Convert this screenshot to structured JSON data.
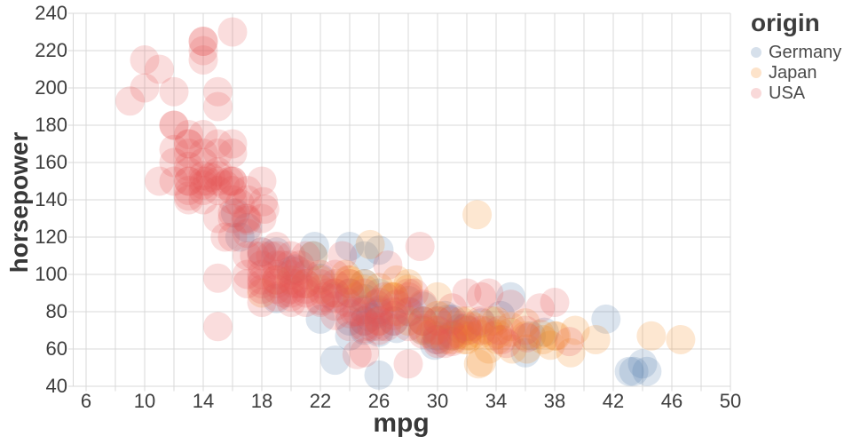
{
  "chart_data": {
    "type": "scatter",
    "title": "",
    "xlabel": "mpg",
    "ylabel": "horsepower",
    "legend_title": "origin",
    "legend_position": "top-right",
    "xlim": [
      5.2,
      50.8
    ],
    "ylim": [
      40,
      243
    ],
    "x_ticks": [
      6,
      10,
      14,
      18,
      22,
      26,
      30,
      34,
      38,
      42,
      46,
      50
    ],
    "y_ticks": [
      40,
      60,
      80,
      100,
      120,
      140,
      160,
      180,
      200,
      220,
      240
    ],
    "x_grid_step": 2,
    "y_grid_step": 20,
    "grid_on": true,
    "grid_color": "#d9d9d9",
    "text_color": "#3d3d3d",
    "background_color": "#ffffff",
    "marker_radius": 16.5,
    "marker_opacity": 0.2,
    "series": [
      {
        "name": "Germany",
        "color": "#4c78a8",
        "points": [
          [
            26,
            46
          ],
          [
            25,
            87
          ],
          [
            24,
            90
          ],
          [
            25,
            95
          ],
          [
            26,
            113
          ],
          [
            23,
            54
          ],
          [
            22,
            76
          ],
          [
            24,
            75
          ],
          [
            25,
            81
          ],
          [
            26,
            81
          ],
          [
            25,
            75
          ],
          [
            24,
            115
          ],
          [
            25,
            110
          ],
          [
            21.6,
            115
          ],
          [
            26,
            90
          ],
          [
            29,
            75
          ],
          [
            28,
            86
          ],
          [
            31,
            67
          ],
          [
            26,
            79
          ],
          [
            30.5,
            78
          ],
          [
            43.4,
            48
          ],
          [
            43.1,
            48
          ],
          [
            44.3,
            48
          ],
          [
            41.5,
            76
          ],
          [
            29,
            70
          ],
          [
            31.9,
            71
          ],
          [
            31.5,
            71
          ],
          [
            33,
            74
          ],
          [
            29.8,
            62
          ],
          [
            29,
            83
          ],
          [
            20.3,
            103
          ],
          [
            34.3,
            78
          ],
          [
            36.4,
            67
          ],
          [
            21.5,
            110
          ],
          [
            19,
            87
          ],
          [
            23,
            88
          ],
          [
            27.2,
            71
          ],
          [
            16.2,
            133
          ],
          [
            28.1,
            80
          ],
          [
            26,
            69
          ],
          [
            36,
            58
          ],
          [
            30,
            65
          ],
          [
            30,
            67
          ],
          [
            25.4,
            77
          ],
          [
            16.5,
            120
          ],
          [
            19,
            112
          ],
          [
            22,
            98
          ],
          [
            20,
            102
          ],
          [
            17,
            125
          ],
          [
            30.7,
            76
          ],
          [
            18,
            112
          ],
          [
            35,
            88
          ],
          [
            37.3,
            69
          ],
          [
            44,
            52
          ],
          [
            25,
            70
          ],
          [
            27,
            75
          ],
          [
            24,
            67
          ],
          [
            31,
            76
          ]
        ]
      },
      {
        "name": "Japan",
        "color": "#f58518",
        "points": [
          [
            24,
            95
          ],
          [
            27,
            88
          ],
          [
            27,
            88
          ],
          [
            25,
            95
          ],
          [
            31,
            65
          ],
          [
            32,
            65
          ],
          [
            24,
            97
          ],
          [
            19,
            97
          ],
          [
            18,
            90
          ],
          [
            21.5,
            110
          ],
          [
            22,
            92
          ],
          [
            35,
            69
          ],
          [
            31,
            67
          ],
          [
            29,
            75
          ],
          [
            28,
            75
          ],
          [
            26,
            93
          ],
          [
            32,
            75
          ],
          [
            32.8,
            52
          ],
          [
            34.1,
            65
          ],
          [
            46.6,
            65
          ],
          [
            44.6,
            67
          ],
          [
            36.1,
            60
          ],
          [
            35.1,
            60
          ],
          [
            33.7,
            75
          ],
          [
            31.5,
            68
          ],
          [
            29.5,
            68
          ],
          [
            32.4,
            72
          ],
          [
            22,
            97
          ],
          [
            23.9,
            97
          ],
          [
            32.7,
            132
          ],
          [
            25.4,
            116
          ],
          [
            23.7,
            100
          ],
          [
            21,
            95
          ],
          [
            20,
            97
          ],
          [
            27.2,
            97
          ],
          [
            31.8,
            65
          ],
          [
            40.8,
            65
          ],
          [
            37.2,
            65
          ],
          [
            39.4,
            70
          ],
          [
            38.1,
            67
          ],
          [
            37.7,
            62
          ],
          [
            39.1,
            58
          ],
          [
            33.8,
            67
          ],
          [
            32.3,
            67
          ],
          [
            37,
            68
          ],
          [
            31.6,
            75
          ],
          [
            33,
            53
          ],
          [
            32,
            67
          ],
          [
            26,
            75
          ],
          [
            30,
            75
          ],
          [
            33.5,
            70
          ],
          [
            28,
            92
          ],
          [
            24.5,
            88
          ],
          [
            29,
            70
          ],
          [
            34.1,
            68
          ],
          [
            35,
            72
          ],
          [
            32.9,
            68
          ],
          [
            27.4,
            80
          ],
          [
            30,
            78
          ],
          [
            38,
            67
          ],
          [
            32,
            70
          ],
          [
            36,
            67
          ],
          [
            28,
            95
          ],
          [
            25,
            92
          ],
          [
            30.5,
            65
          ],
          [
            34,
            75
          ],
          [
            29.8,
            70
          ],
          [
            33.5,
            60
          ],
          [
            36,
            74
          ],
          [
            23,
            90
          ],
          [
            26.8,
            88
          ],
          [
            30,
            88
          ]
        ]
      },
      {
        "name": "USA",
        "color": "#e45756",
        "points": [
          [
            15,
            165
          ],
          [
            16,
            150
          ],
          [
            14,
            220
          ],
          [
            14,
            215
          ],
          [
            14,
            225
          ],
          [
            15,
            190
          ],
          [
            15,
            170
          ],
          [
            14,
            160
          ],
          [
            15,
            150
          ],
          [
            14,
            225
          ],
          [
            10,
            215
          ],
          [
            10,
            200
          ],
          [
            11,
            210
          ],
          [
            9,
            193
          ],
          [
            13,
            150
          ],
          [
            14,
            153
          ],
          [
            13,
            145
          ],
          [
            12,
            198
          ],
          [
            13,
            170
          ],
          [
            12,
            180
          ],
          [
            13,
            175
          ],
          [
            14,
            150
          ],
          [
            13,
            170
          ],
          [
            14,
            175
          ],
          [
            12,
            167
          ],
          [
            13,
            155
          ],
          [
            12,
            160
          ],
          [
            13,
            140
          ],
          [
            14,
            140
          ],
          [
            13,
            150
          ],
          [
            12,
            150
          ],
          [
            13,
            158
          ],
          [
            11,
            150
          ],
          [
            12,
            180
          ],
          [
            13,
            165
          ],
          [
            14,
            148
          ],
          [
            13,
            142
          ],
          [
            14,
            165
          ],
          [
            15,
            198
          ],
          [
            15,
            145
          ],
          [
            16,
            230
          ],
          [
            14.5,
            152
          ],
          [
            16,
            165
          ],
          [
            15,
            153
          ],
          [
            16,
            170
          ],
          [
            15.5,
            148
          ],
          [
            18,
            150
          ],
          [
            18,
            130
          ],
          [
            17,
            140
          ],
          [
            16,
            150
          ],
          [
            19,
            110
          ],
          [
            18,
            110
          ],
          [
            17,
            130
          ],
          [
            16,
            130
          ],
          [
            19,
            105
          ],
          [
            18,
            105
          ],
          [
            17,
            122
          ],
          [
            18,
            112
          ],
          [
            16,
            120
          ],
          [
            17,
            100
          ],
          [
            18,
            100
          ],
          [
            19,
            100
          ],
          [
            20,
            110
          ],
          [
            16,
            140
          ],
          [
            17,
            145
          ],
          [
            19,
            97
          ],
          [
            18,
            97
          ],
          [
            20,
            100
          ],
          [
            19,
            95
          ],
          [
            18,
            95
          ],
          [
            17,
            110
          ],
          [
            17.5,
            110
          ],
          [
            16.9,
            130
          ],
          [
            16.5,
            138
          ],
          [
            18.2,
            135
          ],
          [
            15,
            130
          ],
          [
            17,
            129
          ],
          [
            18.1,
            139
          ],
          [
            19.4,
            105
          ],
          [
            18.6,
            110
          ],
          [
            16,
            133
          ],
          [
            19,
            115
          ],
          [
            20.2,
            95
          ],
          [
            20.5,
            102
          ],
          [
            21,
            110
          ],
          [
            15.5,
            120
          ],
          [
            22,
            95
          ],
          [
            21,
            85
          ],
          [
            21,
            90
          ],
          [
            19,
            88
          ],
          [
            22,
            86
          ],
          [
            23,
            95
          ],
          [
            20,
            90
          ],
          [
            21,
            100
          ],
          [
            20.5,
            95
          ],
          [
            22.5,
            90
          ],
          [
            23,
            100
          ],
          [
            24,
            95
          ],
          [
            19.5,
            90
          ],
          [
            18,
            85
          ],
          [
            20,
            88
          ],
          [
            22,
            100
          ],
          [
            23,
            90
          ],
          [
            24,
            90
          ],
          [
            20,
            85
          ],
          [
            21,
            95
          ],
          [
            22,
            85
          ],
          [
            19.9,
            105
          ],
          [
            23.8,
            85
          ],
          [
            24.3,
            80
          ],
          [
            20.6,
            105
          ],
          [
            22.3,
            88
          ],
          [
            28,
            90
          ],
          [
            25,
            75
          ],
          [
            26,
            75
          ],
          [
            23,
            83
          ],
          [
            26,
            70
          ],
          [
            25,
            72
          ],
          [
            23,
            78
          ],
          [
            24,
            79
          ],
          [
            25,
            71
          ],
          [
            26,
            72
          ],
          [
            27,
            80
          ],
          [
            28,
            80
          ],
          [
            25,
            80
          ],
          [
            30,
            63
          ],
          [
            30.5,
            63
          ],
          [
            32.1,
            70
          ],
          [
            29,
            71
          ],
          [
            26.5,
            72
          ],
          [
            24.5,
            80
          ],
          [
            30,
            75
          ],
          [
            25.5,
            72
          ],
          [
            27,
            78
          ],
          [
            28.4,
            90
          ],
          [
            29,
            75
          ],
          [
            24,
            72
          ],
          [
            26,
            85
          ],
          [
            24.5,
            57
          ],
          [
            25,
            58
          ],
          [
            28,
            52
          ],
          [
            31,
            64
          ],
          [
            28.8,
            115
          ],
          [
            23.5,
            110
          ],
          [
            26.4,
            88
          ],
          [
            34.2,
            70
          ],
          [
            30.9,
            75
          ],
          [
            29.9,
            65
          ],
          [
            34.7,
            63
          ],
          [
            28,
            88
          ],
          [
            29,
            84
          ],
          [
            25.8,
            84
          ],
          [
            36,
            70
          ],
          [
            34.4,
            65
          ],
          [
            33,
            88
          ],
          [
            38,
            85
          ],
          [
            33.5,
            90
          ],
          [
            35,
            84
          ],
          [
            31,
            82
          ],
          [
            32,
            90
          ],
          [
            37,
            82
          ],
          [
            36.1,
            66
          ],
          [
            39,
            64
          ],
          [
            32.9,
            75
          ],
          [
            27.2,
            84
          ],
          [
            26.6,
            105
          ],
          [
            15,
            72
          ],
          [
            15,
            98
          ],
          [
            14,
            145
          ],
          [
            15,
            155
          ],
          [
            16,
            145
          ],
          [
            14.3,
            150
          ],
          [
            15.8,
            150
          ],
          [
            17,
            95
          ],
          [
            18,
            92
          ],
          [
            19,
            92
          ],
          [
            21,
            92
          ],
          [
            20,
            92
          ],
          [
            23,
            87
          ],
          [
            25,
            90
          ],
          [
            26,
            80
          ],
          [
            27,
            75
          ],
          [
            28,
            72
          ],
          [
            29,
            68
          ],
          [
            30,
            70
          ],
          [
            31,
            68
          ],
          [
            32,
            72
          ],
          [
            33,
            70
          ]
        ]
      }
    ]
  },
  "legend": {
    "title": "origin",
    "items": [
      "Germany",
      "Japan",
      "USA"
    ]
  }
}
